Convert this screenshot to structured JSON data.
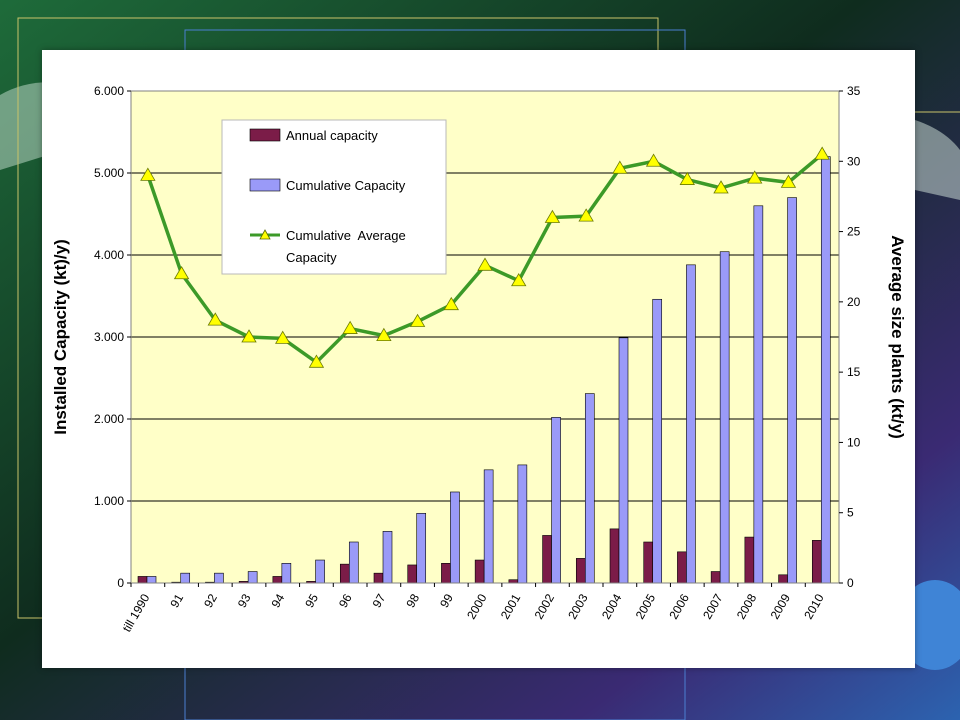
{
  "colors": {
    "slide_bg_dark": "#0f2c1e",
    "slide_bg_green": "#1e6b3a",
    "slide_bg_purple": "#3a2a73",
    "slide_bg_blue": "#2c63b0",
    "plot_bg": "#ffffc8",
    "annual_bar": "#7b1c48",
    "cumulative_bar": "#9a9af8",
    "line": "#3c9a28",
    "marker": "#ffff00"
  },
  "chart_data": {
    "type": "bar",
    "combo": "bar+line",
    "categories": [
      "till 1990",
      "91",
      "92",
      "93",
      "94",
      "95",
      "96",
      "97",
      "98",
      "99",
      "2000",
      "2001",
      "2002",
      "2003",
      "2004",
      "2005",
      "2006",
      "2007",
      "2008",
      "2009",
      "2010"
    ],
    "series": [
      {
        "name": "Annual capacity",
        "type": "bar",
        "axis": "left",
        "values": [
          80,
          10,
          10,
          20,
          80,
          20,
          230,
          120,
          220,
          240,
          280,
          40,
          580,
          300,
          660,
          500,
          380,
          140,
          560,
          100,
          520
        ]
      },
      {
        "name": "Cumulative Capacity",
        "type": "bar",
        "axis": "left",
        "values": [
          80,
          120,
          120,
          140,
          240,
          280,
          500,
          630,
          850,
          1110,
          1380,
          1440,
          2020,
          2310,
          2990,
          3460,
          3880,
          4040,
          4600,
          4700,
          5200
        ]
      },
      {
        "name": "Cumulative  Average Capacity",
        "type": "line",
        "axis": "right",
        "values": [
          29,
          22,
          18.7,
          17.5,
          17.4,
          15.7,
          18.1,
          17.6,
          18.6,
          19.8,
          22.6,
          21.5,
          26.0,
          26.1,
          29.5,
          30.0,
          28.7,
          28.1,
          28.8,
          28.5,
          30.5
        ]
      }
    ],
    "ylabel": "Installed Capacity (kt)/y)",
    "ylabel_right": "Average size plants (kt/y)",
    "ylim": [
      0,
      6000
    ],
    "ylim_right": [
      0,
      35
    ],
    "yticks": [
      "0",
      "1.000",
      "2.000",
      "3.000",
      "4.000",
      "5.000",
      "6.000"
    ],
    "yticks_right": [
      "0",
      "5",
      "10",
      "15",
      "20",
      "25",
      "30",
      "35"
    ],
    "grid": true,
    "legend_position": "top-left",
    "legend": [
      "Annual capacity",
      "Cumulative Capacity",
      "Cumulative  Average",
      "Capacity"
    ]
  }
}
